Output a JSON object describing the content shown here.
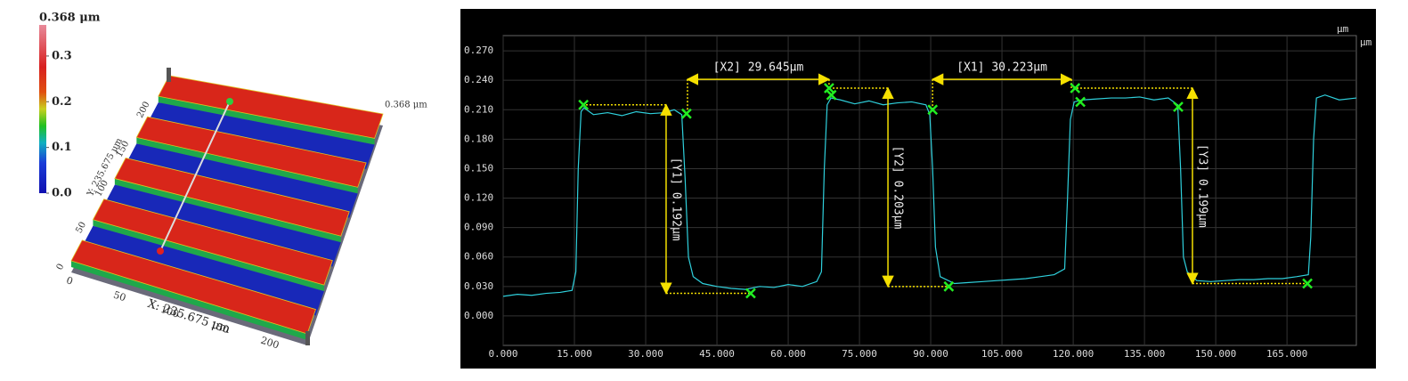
{
  "chart_data": [
    {
      "type": "surface3d",
      "colorbar": {
        "label": "0.368 μm",
        "clim": [
          0,
          0.368
        ],
        "ticks": [
          {
            "value": 0,
            "label": "0.0"
          },
          0.1,
          0.2,
          0.3
        ]
      },
      "xlabel": "X: 235.675 μm",
      "ylabel": "Y: 235.675 μm",
      "zlabel": "0.368 μm",
      "xlim": [
        0,
        235.675
      ],
      "ylim": [
        0,
        235.675
      ],
      "xticks": [
        0,
        50,
        100,
        150,
        200
      ],
      "yticks": [
        0,
        50,
        100,
        150,
        200
      ]
    },
    {
      "type": "line",
      "unit_labels": [
        "μm",
        "μm"
      ],
      "xlim": [
        0,
        179.6
      ],
      "ylim": [
        -0.03,
        0.2855
      ],
      "xticks": [
        {
          "value": 0,
          "label": "0.000"
        },
        {
          "value": 15,
          "label": "15.000"
        },
        {
          "value": 30,
          "label": "30.000"
        },
        {
          "value": 45,
          "label": "45.000"
        },
        {
          "value": 60,
          "label": "60.000"
        },
        {
          "value": 75,
          "label": "75.000"
        },
        {
          "value": 90,
          "label": "90.000"
        },
        {
          "value": 105,
          "label": "105.000"
        },
        {
          "value": 120,
          "label": "120.000"
        },
        {
          "value": 135,
          "label": "135.000"
        },
        {
          "value": 150,
          "label": "150.000"
        },
        {
          "value": 165,
          "label": "165.000"
        }
      ],
      "yticks": [
        {
          "value": 0,
          "label": "0.000"
        },
        {
          "value": 0.03,
          "label": "0.030"
        },
        {
          "value": 0.06,
          "label": "0.060"
        },
        {
          "value": 0.09,
          "label": "0.090"
        },
        {
          "value": 0.12,
          "label": "0.120"
        },
        {
          "value": 0.15,
          "label": "0.150"
        },
        {
          "value": 0.18,
          "label": "0.180"
        },
        {
          "value": 0.21,
          "label": "0.210"
        },
        {
          "value": 0.24,
          "label": "0.240"
        },
        {
          "value": 0.27,
          "label": "0.270"
        }
      ],
      "grid": true,
      "series": [
        {
          "color": "#2fd0dc",
          "x": [
            0,
            3,
            6,
            9,
            12,
            14.5,
            15.3,
            15.8,
            16.4,
            17,
            19,
            22,
            25,
            28,
            31,
            34,
            36,
            37.6,
            38.3,
            39,
            40,
            42,
            45,
            48,
            51,
            54,
            57,
            60,
            63,
            66,
            67,
            67.6,
            68.2,
            69,
            71,
            74,
            77,
            80,
            83,
            86,
            89,
            89.8,
            90.4,
            91,
            92,
            95,
            98,
            101,
            104,
            107,
            110,
            113,
            116,
            118.2,
            118.8,
            119.4,
            120.2,
            122,
            125,
            128,
            131,
            134,
            137,
            140,
            142,
            142.6,
            143.2,
            144,
            146,
            149,
            152,
            155,
            158,
            161,
            164,
            167,
            169.5,
            170,
            170.6,
            171.2,
            173,
            176,
            179.6
          ],
          "values": [
            0.02,
            0.022,
            0.021,
            0.023,
            0.024,
            0.026,
            0.045,
            0.15,
            0.208,
            0.212,
            0.205,
            0.207,
            0.204,
            0.208,
            0.206,
            0.207,
            0.21,
            0.205,
            0.14,
            0.06,
            0.04,
            0.033,
            0.03,
            0.028,
            0.027,
            0.03,
            0.029,
            0.032,
            0.03,
            0.035,
            0.045,
            0.15,
            0.215,
            0.222,
            0.22,
            0.216,
            0.219,
            0.215,
            0.217,
            0.218,
            0.215,
            0.205,
            0.15,
            0.07,
            0.04,
            0.033,
            0.034,
            0.035,
            0.036,
            0.037,
            0.038,
            0.04,
            0.042,
            0.048,
            0.12,
            0.2,
            0.218,
            0.22,
            0.221,
            0.222,
            0.222,
            0.223,
            0.22,
            0.222,
            0.215,
            0.15,
            0.06,
            0.045,
            0.036,
            0.035,
            0.036,
            0.037,
            0.037,
            0.038,
            0.038,
            0.04,
            0.042,
            0.08,
            0.18,
            0.222,
            0.225,
            0.22,
            0.222
          ]
        }
      ],
      "markers": {
        "color": "#22ee22",
        "x": [
          16.9,
          38.6,
          52.1,
          68.6,
          69.1,
          90.4,
          93.8,
          120.4,
          121.5,
          142.1,
          169.3
        ],
        "values": [
          0.215,
          0.206,
          0.023,
          0.232,
          0.225,
          0.21,
          0.03,
          0.232,
          0.218,
          0.213,
          0.033
        ]
      },
      "annotation_color": "#f5e000",
      "annotations": [
        {
          "label": "[X2] 29.645μm",
          "x": [
            38.8,
            68.6
          ],
          "y": 0.241,
          "anchors": [
            0.206,
            0.232
          ]
        },
        {
          "label": "[X1] 30.223μm",
          "x": [
            90.4,
            119.6
          ],
          "y": 0.241,
          "anchors": [
            0.21,
            0.232
          ]
        },
        {
          "label": "[Y1] 0.192μm",
          "x": 34.3,
          "y": [
            0.023,
            0.215
          ],
          "anchors": [
            52.1,
            16.9
          ]
        },
        {
          "label": "[Y2] 0.203μm",
          "x": 81,
          "y": [
            0.03,
            0.232
          ],
          "anchors": [
            93.8,
            68.6
          ]
        },
        {
          "label": "[Y3] 0.199μm",
          "x": 145.1,
          "y": [
            0.033,
            0.232
          ],
          "anchors": [
            169.3,
            120.4
          ]
        }
      ]
    }
  ]
}
